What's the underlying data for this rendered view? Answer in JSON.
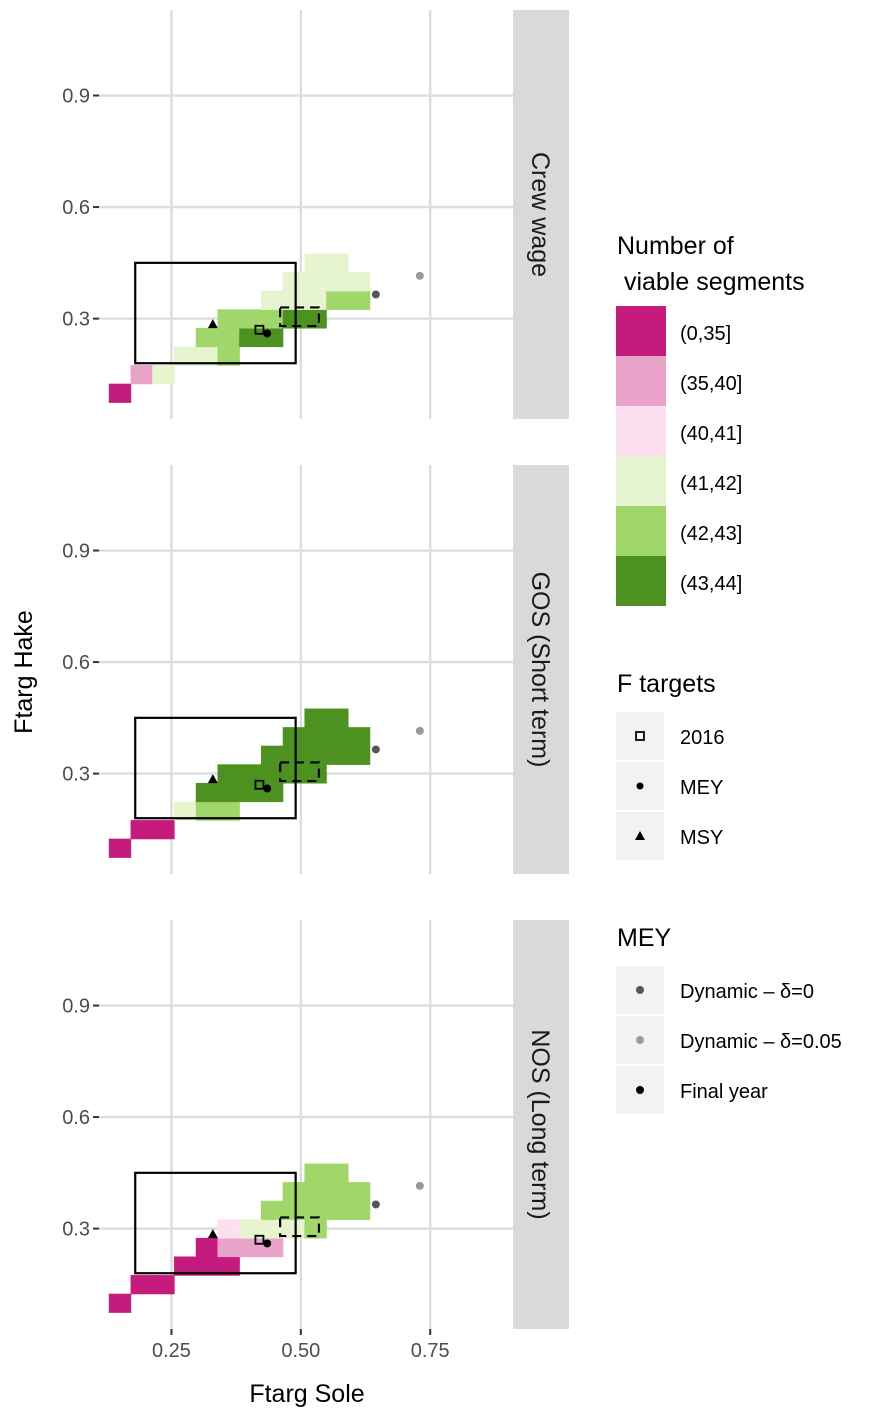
{
  "chart_data": {
    "type": "heatmap",
    "xlabel": "Ftarg Sole",
    "ylabel": "Ftarg Hake",
    "xlim": [
      0.11,
      0.91
    ],
    "ylim": [
      0.03,
      1.13
    ],
    "x_ticks": [
      {
        "value": 0.25,
        "label": "0.25"
      },
      {
        "value": 0.5,
        "label": "0.50"
      },
      {
        "value": 0.75,
        "label": "0.75"
      }
    ],
    "y_ticks": [
      {
        "value": 0.3,
        "label": "0.3"
      },
      {
        "value": 0.6,
        "label": "0.6"
      },
      {
        "value": 0.9,
        "label": "0.9"
      }
    ],
    "tile_width": 0.042,
    "tile_height": 0.05,
    "fill_legend": {
      "title_line1": "Number of",
      "title_line2": " viable segments",
      "classes": [
        {
          "label": "(0,35]",
          "color": "#C51B7D"
        },
        {
          "label": "(35,40]",
          "color": "#E9A3C9"
        },
        {
          "label": "(40,41]",
          "color": "#FDE0EF"
        },
        {
          "label": "(41,42]",
          "color": "#E6F5D0"
        },
        {
          "label": "(42,43]",
          "color": "#A1D76A"
        },
        {
          "label": "(43,44]",
          "color": "#4D9221"
        }
      ]
    },
    "ftargets_legend": {
      "title": "F targets",
      "items": [
        {
          "label": "2016",
          "shape": "open-square"
        },
        {
          "label": "MEY",
          "shape": "dot"
        },
        {
          "label": "MSY",
          "shape": "triangle"
        }
      ]
    },
    "mey_legend": {
      "title": "MEY",
      "items": [
        {
          "label": "Dynamic – δ=0",
          "color": "#555555"
        },
        {
          "label": "Dynamic – δ=0.05",
          "color": "#999999"
        },
        {
          "label": "Final year",
          "color": "#000000"
        }
      ]
    },
    "points": {
      "f2016": {
        "x": 0.42,
        "y": 0.27
      },
      "mey": {
        "x": 0.435,
        "y": 0.26
      },
      "msy": {
        "x": 0.33,
        "y": 0.285
      },
      "dynamic_d0": {
        "x": 0.645,
        "y": 0.365
      },
      "dynamic_d005": {
        "x": 0.73,
        "y": 0.415
      }
    },
    "solid_range_box": {
      "x": [
        0.18,
        0.49
      ],
      "y": [
        0.18,
        0.45
      ]
    },
    "dashed_range_box": {
      "x": [
        0.46,
        0.535
      ],
      "y": [
        0.28,
        0.33
      ]
    },
    "panels": [
      {
        "strip": "Crew wage",
        "tiles": [
          {
            "x": 0.15,
            "y": 0.1,
            "class": 0
          },
          {
            "x": 0.192,
            "y": 0.15,
            "class": 1
          },
          {
            "x": 0.234,
            "y": 0.15,
            "class": 3
          },
          {
            "x": 0.276,
            "y": 0.2,
            "class": 3
          },
          {
            "x": 0.318,
            "y": 0.2,
            "class": 3
          },
          {
            "x": 0.36,
            "y": 0.2,
            "class": 4
          },
          {
            "x": 0.318,
            "y": 0.25,
            "class": 4
          },
          {
            "x": 0.36,
            "y": 0.25,
            "class": 4
          },
          {
            "x": 0.402,
            "y": 0.25,
            "class": 5
          },
          {
            "x": 0.444,
            "y": 0.25,
            "class": 5
          },
          {
            "x": 0.36,
            "y": 0.3,
            "class": 4
          },
          {
            "x": 0.402,
            "y": 0.3,
            "class": 4
          },
          {
            "x": 0.444,
            "y": 0.3,
            "class": 4
          },
          {
            "x": 0.486,
            "y": 0.3,
            "class": 5
          },
          {
            "x": 0.528,
            "y": 0.3,
            "class": 5
          },
          {
            "x": 0.444,
            "y": 0.35,
            "class": 3
          },
          {
            "x": 0.486,
            "y": 0.35,
            "class": 3
          },
          {
            "x": 0.528,
            "y": 0.35,
            "class": 3
          },
          {
            "x": 0.57,
            "y": 0.35,
            "class": 4
          },
          {
            "x": 0.612,
            "y": 0.35,
            "class": 4
          },
          {
            "x": 0.486,
            "y": 0.4,
            "class": 3
          },
          {
            "x": 0.528,
            "y": 0.4,
            "class": 3
          },
          {
            "x": 0.57,
            "y": 0.4,
            "class": 3
          },
          {
            "x": 0.612,
            "y": 0.4,
            "class": 3
          },
          {
            "x": 0.528,
            "y": 0.45,
            "class": 3
          },
          {
            "x": 0.57,
            "y": 0.45,
            "class": 3
          }
        ]
      },
      {
        "strip": "GOS (Short term)",
        "tiles": [
          {
            "x": 0.15,
            "y": 0.1,
            "class": 0
          },
          {
            "x": 0.192,
            "y": 0.15,
            "class": 0
          },
          {
            "x": 0.234,
            "y": 0.15,
            "class": 0
          },
          {
            "x": 0.276,
            "y": 0.2,
            "class": 3
          },
          {
            "x": 0.318,
            "y": 0.2,
            "class": 4
          },
          {
            "x": 0.36,
            "y": 0.2,
            "class": 4
          },
          {
            "x": 0.318,
            "y": 0.25,
            "class": 5
          },
          {
            "x": 0.36,
            "y": 0.25,
            "class": 5
          },
          {
            "x": 0.402,
            "y": 0.25,
            "class": 5
          },
          {
            "x": 0.444,
            "y": 0.25,
            "class": 5
          },
          {
            "x": 0.36,
            "y": 0.3,
            "class": 5
          },
          {
            "x": 0.402,
            "y": 0.3,
            "class": 5
          },
          {
            "x": 0.444,
            "y": 0.3,
            "class": 5
          },
          {
            "x": 0.486,
            "y": 0.3,
            "class": 5
          },
          {
            "x": 0.528,
            "y": 0.3,
            "class": 5
          },
          {
            "x": 0.444,
            "y": 0.35,
            "class": 5
          },
          {
            "x": 0.486,
            "y": 0.35,
            "class": 5
          },
          {
            "x": 0.528,
            "y": 0.35,
            "class": 5
          },
          {
            "x": 0.57,
            "y": 0.35,
            "class": 5
          },
          {
            "x": 0.612,
            "y": 0.35,
            "class": 5
          },
          {
            "x": 0.486,
            "y": 0.4,
            "class": 5
          },
          {
            "x": 0.528,
            "y": 0.4,
            "class": 5
          },
          {
            "x": 0.57,
            "y": 0.4,
            "class": 5
          },
          {
            "x": 0.612,
            "y": 0.4,
            "class": 5
          },
          {
            "x": 0.528,
            "y": 0.45,
            "class": 5
          },
          {
            "x": 0.57,
            "y": 0.45,
            "class": 5
          }
        ]
      },
      {
        "strip": "NOS (Long term)",
        "tiles": [
          {
            "x": 0.15,
            "y": 0.1,
            "class": 0
          },
          {
            "x": 0.192,
            "y": 0.15,
            "class": 0
          },
          {
            "x": 0.234,
            "y": 0.15,
            "class": 0
          },
          {
            "x": 0.276,
            "y": 0.2,
            "class": 0
          },
          {
            "x": 0.318,
            "y": 0.2,
            "class": 0
          },
          {
            "x": 0.36,
            "y": 0.2,
            "class": 0
          },
          {
            "x": 0.318,
            "y": 0.25,
            "class": 0
          },
          {
            "x": 0.36,
            "y": 0.25,
            "class": 1
          },
          {
            "x": 0.402,
            "y": 0.25,
            "class": 1
          },
          {
            "x": 0.444,
            "y": 0.25,
            "class": 1
          },
          {
            "x": 0.36,
            "y": 0.3,
            "class": 2
          },
          {
            "x": 0.402,
            "y": 0.3,
            "class": 3
          },
          {
            "x": 0.444,
            "y": 0.3,
            "class": 3
          },
          {
            "x": 0.486,
            "y": 0.3,
            "class": 3
          },
          {
            "x": 0.528,
            "y": 0.3,
            "class": 4
          },
          {
            "x": 0.444,
            "y": 0.35,
            "class": 4
          },
          {
            "x": 0.486,
            "y": 0.35,
            "class": 4
          },
          {
            "x": 0.528,
            "y": 0.35,
            "class": 4
          },
          {
            "x": 0.57,
            "y": 0.35,
            "class": 4
          },
          {
            "x": 0.612,
            "y": 0.35,
            "class": 4
          },
          {
            "x": 0.486,
            "y": 0.4,
            "class": 4
          },
          {
            "x": 0.528,
            "y": 0.4,
            "class": 4
          },
          {
            "x": 0.57,
            "y": 0.4,
            "class": 4
          },
          {
            "x": 0.612,
            "y": 0.4,
            "class": 4
          },
          {
            "x": 0.528,
            "y": 0.45,
            "class": 4
          },
          {
            "x": 0.57,
            "y": 0.45,
            "class": 4
          }
        ]
      }
    ]
  }
}
